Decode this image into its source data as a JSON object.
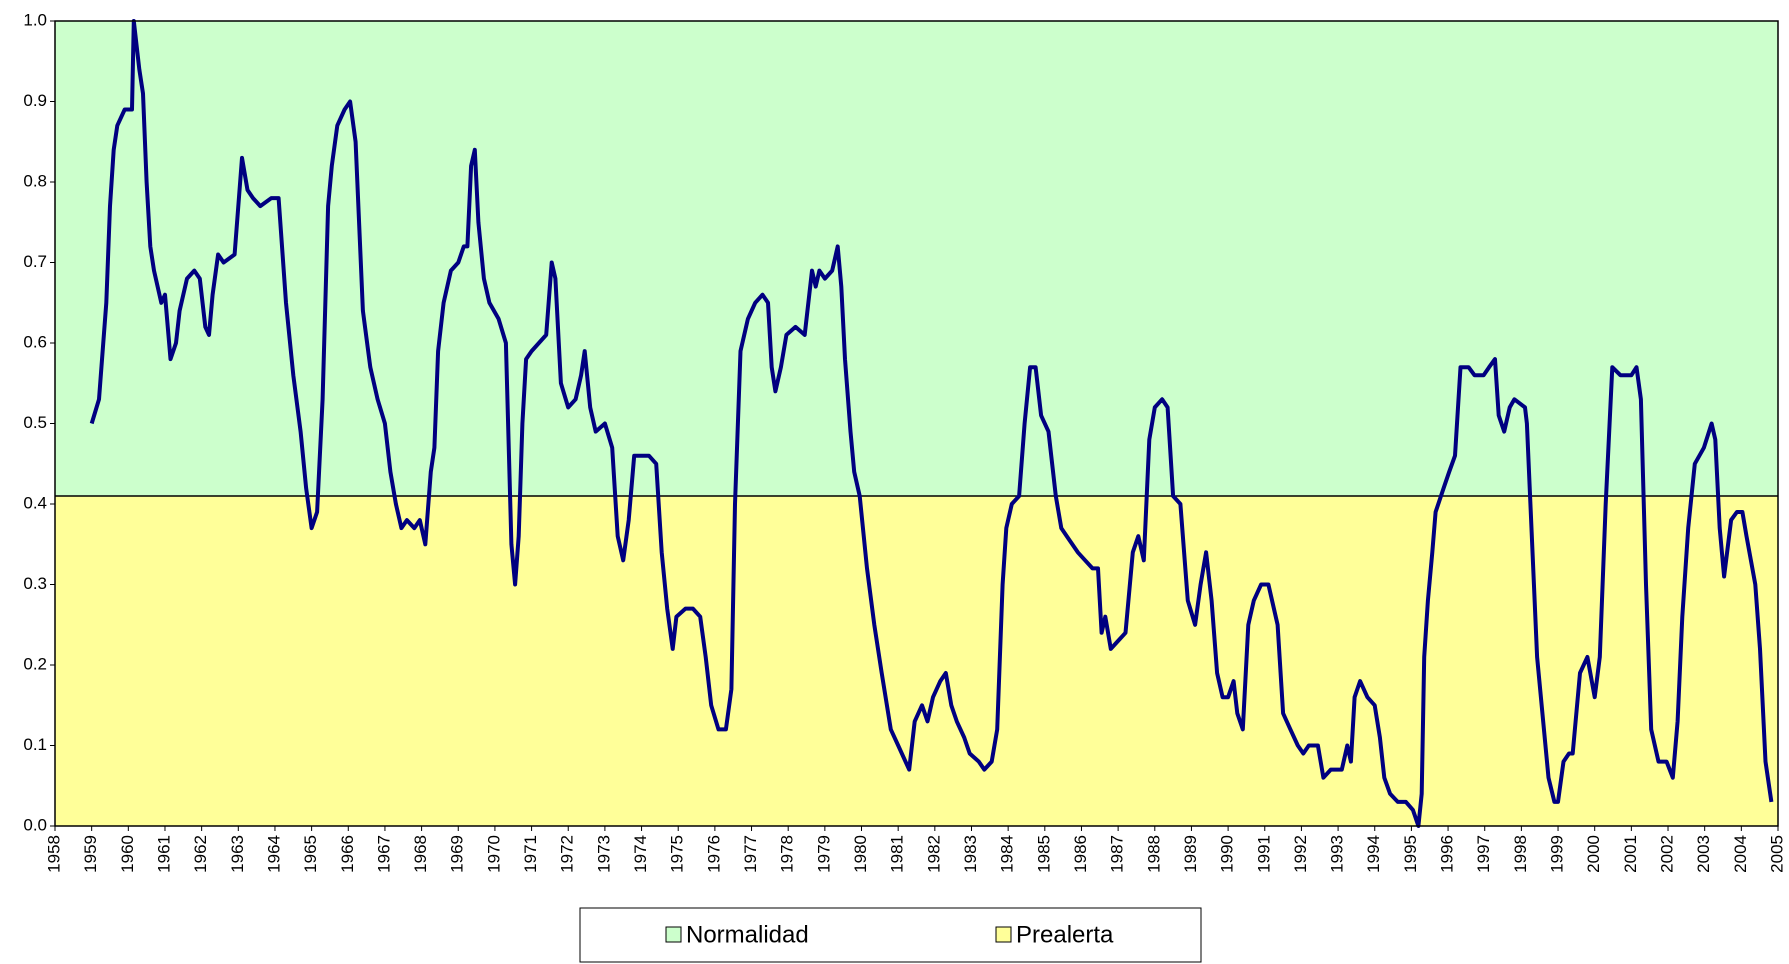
{
  "chart_data": {
    "type": "line",
    "threshold": 0.41,
    "bands": [
      {
        "name": "Normalidad",
        "color": "#ccffcc",
        "side": "above"
      },
      {
        "name": "Prealerta",
        "color": "#ffff99",
        "side": "below"
      }
    ],
    "xlim": [
      1958,
      2005
    ],
    "xticks": [
      1958,
      1959,
      1960,
      1961,
      1962,
      1963,
      1964,
      1965,
      1966,
      1967,
      1968,
      1969,
      1970,
      1971,
      1972,
      1973,
      1974,
      1975,
      1976,
      1977,
      1978,
      1979,
      1980,
      1981,
      1982,
      1983,
      1984,
      1985,
      1986,
      1987,
      1988,
      1989,
      1990,
      1991,
      1992,
      1993,
      1994,
      1995,
      1996,
      1997,
      1998,
      1999,
      2000,
      2001,
      2002,
      2003,
      2004,
      2005
    ],
    "ylim": [
      0,
      1
    ],
    "yticks": [
      {
        "value": 0,
        "label": "0.0"
      },
      0.1,
      0.2,
      0.3,
      0.4,
      0.5,
      0.6,
      0.7,
      0.8,
      0.9,
      {
        "value": 1,
        "label": "1.0"
      }
    ],
    "x": [
      1959.0,
      1959.2,
      1959.4,
      1959.5,
      1959.6,
      1959.7,
      1959.9,
      1960.1,
      1960.15,
      1960.3,
      1960.4,
      1960.5,
      1960.6,
      1960.7,
      1960.9,
      1961.0,
      1961.15,
      1961.3,
      1961.4,
      1961.6,
      1961.8,
      1961.95,
      1962.1,
      1962.2,
      1962.3,
      1962.45,
      1962.6,
      1962.9,
      1963.1,
      1963.25,
      1963.4,
      1963.6,
      1963.9,
      1964.1,
      1964.3,
      1964.5,
      1964.7,
      1964.85,
      1965.0,
      1965.15,
      1965.3,
      1965.45,
      1965.55,
      1965.7,
      1965.9,
      1966.05,
      1966.2,
      1966.4,
      1966.6,
      1966.8,
      1967.0,
      1967.15,
      1967.3,
      1967.45,
      1967.6,
      1967.8,
      1967.95,
      1968.1,
      1968.25,
      1968.35,
      1968.45,
      1968.6,
      1968.8,
      1969.0,
      1969.15,
      1969.25,
      1969.35,
      1969.45,
      1969.55,
      1969.7,
      1969.85,
      1970.1,
      1970.3,
      1970.45,
      1970.55,
      1970.65,
      1970.75,
      1970.85,
      1971.0,
      1971.2,
      1971.4,
      1971.55,
      1971.65,
      1971.8,
      1972.0,
      1972.2,
      1972.35,
      1972.45,
      1972.6,
      1972.75,
      1973.0,
      1973.2,
      1973.35,
      1973.5,
      1973.65,
      1973.8,
      1974.0,
      1974.2,
      1974.4,
      1974.55,
      1974.7,
      1974.85,
      1974.95,
      1975.2,
      1975.4,
      1975.6,
      1975.75,
      1975.9,
      1976.1,
      1976.3,
      1976.45,
      1976.55,
      1976.7,
      1976.9,
      1977.1,
      1977.3,
      1977.45,
      1977.55,
      1977.65,
      1977.8,
      1977.95,
      1978.2,
      1978.45,
      1978.65,
      1978.75,
      1978.85,
      1979.0,
      1979.2,
      1979.35,
      1979.45,
      1979.55,
      1979.7,
      1979.8,
      1979.95,
      1980.15,
      1980.35,
      1980.55,
      1980.8,
      1981.0,
      1981.2,
      1981.3,
      1981.45,
      1981.65,
      1981.8,
      1981.95,
      1982.15,
      1982.3,
      1982.45,
      1982.6,
      1982.8,
      1982.95,
      1983.2,
      1983.35,
      1983.55,
      1983.7,
      1983.85,
      1983.95,
      1984.1,
      1984.3,
      1984.45,
      1984.6,
      1984.75,
      1984.9,
      1985.1,
      1985.3,
      1985.45,
      1985.6,
      1985.75,
      1985.9,
      1986.1,
      1986.3,
      1986.45,
      1986.55,
      1986.65,
      1986.8,
      1987.0,
      1987.2,
      1987.4,
      1987.55,
      1987.7,
      1987.85,
      1988.0,
      1988.2,
      1988.35,
      1988.5,
      1988.7,
      1988.9,
      1989.1,
      1989.25,
      1989.4,
      1989.55,
      1989.7,
      1989.85,
      1990.0,
      1990.15,
      1990.25,
      1990.4,
      1990.55,
      1990.7,
      1990.9,
      1991.1,
      1991.35,
      1991.5,
      1991.7,
      1991.9,
      1992.05,
      1992.2,
      1992.45,
      1992.6,
      1992.8,
      1993.1,
      1993.25,
      1993.35,
      1993.45,
      1993.6,
      1993.8,
      1994.0,
      1994.14,
      1994.26,
      1994.42,
      1994.63,
      1994.85,
      1995.04,
      1995.19,
      1995.28,
      1995.35,
      1995.45,
      1995.57,
      1995.66,
      1995.88,
      1996.03,
      1996.19,
      1996.34,
      1996.56,
      1996.72,
      1996.97,
      1997.12,
      1997.28,
      1997.38,
      1997.53,
      1997.68,
      1997.81,
      1998.1,
      1998.15,
      1998.43,
      1998.74,
      1998.9,
      1999.0,
      1999.15,
      1999.3,
      1999.4,
      1999.6,
      1999.8,
      2000.0,
      2000.14,
      2000.3,
      2000.48,
      2000.7,
      2001.0,
      2001.14,
      2001.26,
      2001.4,
      2001.54,
      2001.74,
      2001.96,
      2002.13,
      2002.26,
      2002.39,
      2002.55,
      2002.73,
      2002.98,
      2003.19,
      2003.29,
      2003.41,
      2003.53,
      2003.72,
      2003.88,
      2004.03,
      2004.14,
      2004.26,
      2004.38,
      2004.51,
      2004.66,
      2004.82
    ],
    "series": [
      {
        "color": "#000080",
        "values": [
          0.5,
          0.53,
          0.65,
          0.77,
          0.84,
          0.87,
          0.89,
          0.89,
          1.0,
          0.94,
          0.91,
          0.8,
          0.72,
          0.69,
          0.65,
          0.66,
          0.58,
          0.6,
          0.64,
          0.68,
          0.69,
          0.68,
          0.62,
          0.61,
          0.66,
          0.71,
          0.7,
          0.71,
          0.83,
          0.79,
          0.78,
          0.77,
          0.78,
          0.78,
          0.65,
          0.56,
          0.49,
          0.42,
          0.37,
          0.39,
          0.53,
          0.77,
          0.82,
          0.87,
          0.89,
          0.9,
          0.85,
          0.64,
          0.57,
          0.53,
          0.5,
          0.44,
          0.4,
          0.37,
          0.38,
          0.37,
          0.38,
          0.35,
          0.44,
          0.47,
          0.59,
          0.65,
          0.69,
          0.7,
          0.72,
          0.72,
          0.82,
          0.84,
          0.75,
          0.68,
          0.65,
          0.63,
          0.6,
          0.35,
          0.3,
          0.36,
          0.5,
          0.58,
          0.59,
          0.6,
          0.61,
          0.7,
          0.68,
          0.55,
          0.52,
          0.53,
          0.56,
          0.59,
          0.52,
          0.49,
          0.5,
          0.47,
          0.36,
          0.33,
          0.38,
          0.46,
          0.46,
          0.46,
          0.45,
          0.34,
          0.27,
          0.22,
          0.26,
          0.27,
          0.27,
          0.26,
          0.21,
          0.15,
          0.12,
          0.12,
          0.17,
          0.4,
          0.59,
          0.63,
          0.65,
          0.66,
          0.65,
          0.57,
          0.54,
          0.57,
          0.61,
          0.62,
          0.61,
          0.69,
          0.67,
          0.69,
          0.68,
          0.69,
          0.72,
          0.67,
          0.58,
          0.49,
          0.44,
          0.41,
          0.32,
          0.25,
          0.19,
          0.12,
          0.1,
          0.08,
          0.07,
          0.13,
          0.15,
          0.13,
          0.16,
          0.18,
          0.19,
          0.15,
          0.13,
          0.11,
          0.09,
          0.08,
          0.07,
          0.08,
          0.12,
          0.3,
          0.37,
          0.4,
          0.41,
          0.5,
          0.57,
          0.57,
          0.51,
          0.49,
          0.41,
          0.37,
          0.36,
          0.35,
          0.34,
          0.33,
          0.32,
          0.32,
          0.24,
          0.26,
          0.22,
          0.23,
          0.24,
          0.34,
          0.36,
          0.33,
          0.48,
          0.52,
          0.53,
          0.52,
          0.41,
          0.4,
          0.28,
          0.25,
          0.3,
          0.34,
          0.28,
          0.19,
          0.16,
          0.16,
          0.18,
          0.14,
          0.12,
          0.25,
          0.28,
          0.3,
          0.3,
          0.25,
          0.14,
          0.12,
          0.1,
          0.09,
          0.1,
          0.1,
          0.06,
          0.07,
          0.07,
          0.1,
          0.08,
          0.16,
          0.18,
          0.16,
          0.15,
          0.11,
          0.06,
          0.04,
          0.03,
          0.03,
          0.02,
          0.0,
          0.04,
          0.21,
          0.28,
          0.34,
          0.39,
          0.42,
          0.44,
          0.46,
          0.57,
          0.57,
          0.56,
          0.56,
          0.57,
          0.58,
          0.51,
          0.49,
          0.52,
          0.53,
          0.52,
          0.5,
          0.21,
          0.06,
          0.03,
          0.03,
          0.08,
          0.09,
          0.09,
          0.19,
          0.21,
          0.16,
          0.21,
          0.4,
          0.57,
          0.56,
          0.56,
          0.57,
          0.53,
          0.3,
          0.12,
          0.08,
          0.08,
          0.06,
          0.13,
          0.26,
          0.37,
          0.45,
          0.47,
          0.5,
          0.48,
          0.37,
          0.31,
          0.38,
          0.39,
          0.39,
          0.36,
          0.33,
          0.3,
          0.22,
          0.08,
          0.03
        ]
      }
    ]
  }
}
